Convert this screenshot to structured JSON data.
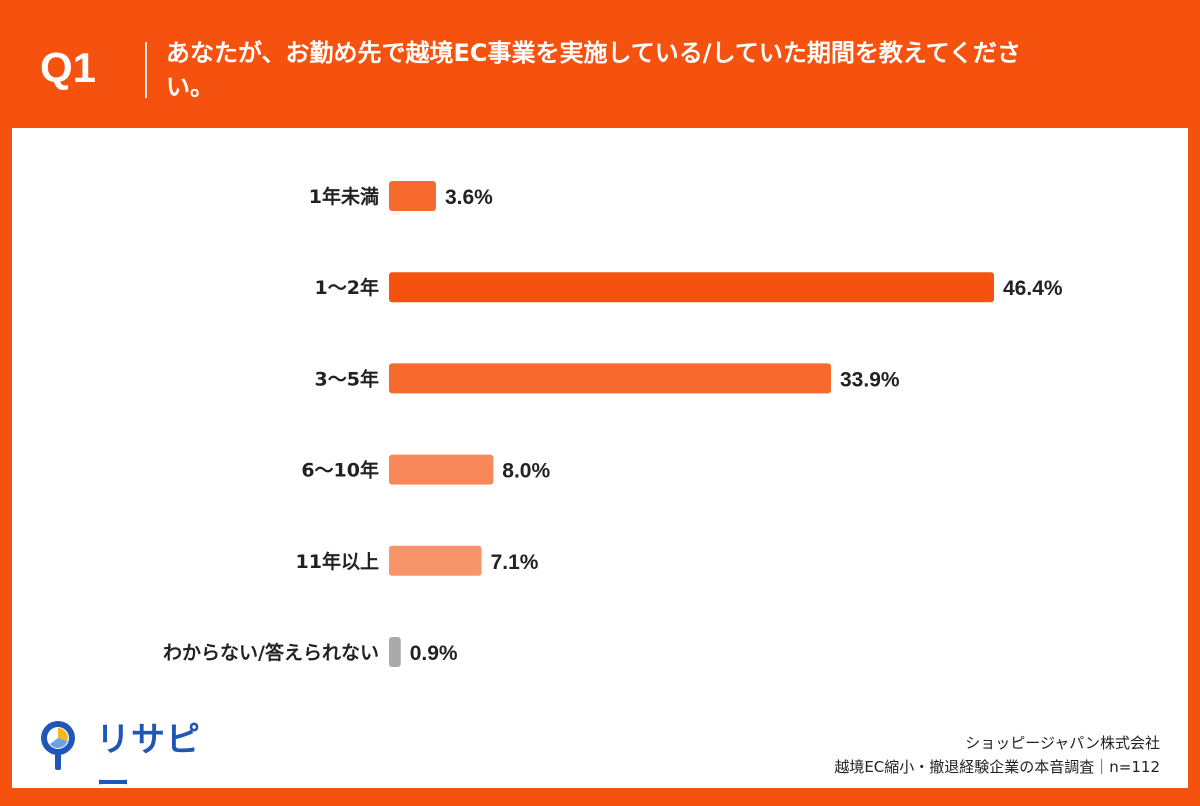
{
  "header": {
    "question_label": "Q1",
    "title": "あなたが、お勤め先で越境EC事業を実施している/していた期間を教えてください。"
  },
  "logo": {
    "text": "リサピー"
  },
  "footer": {
    "company": "ショッピージャパン株式会社",
    "survey": "越境EC縮小・撤退経験企業の本音調査｜n=112"
  },
  "colors": {
    "frame": "#f5520f",
    "panel": "#ffffff",
    "bar_dark": "#f4520e",
    "bar_mid": "#f66a2e",
    "bar_light": "#f8875a",
    "bar_lighter": "#f89469",
    "bar_gray": "#aaaaaa",
    "logo_blue": "#1f56b8",
    "logo_yellow": "#f5b81c"
  },
  "chart_data": {
    "type": "bar",
    "orientation": "horizontal",
    "categories": [
      "1年未満",
      "1〜2年",
      "3〜5年",
      "6〜10年",
      "11年以上",
      "わからない/答えられない"
    ],
    "values": [
      3.6,
      46.4,
      33.9,
      8.0,
      7.1,
      0.9
    ],
    "value_labels": [
      "3.6%",
      "46.4%",
      "33.9%",
      "8.0%",
      "7.1%",
      "0.9%"
    ],
    "bar_colors": [
      "#f66a2e",
      "#f4520e",
      "#f66a2e",
      "#f8875a",
      "#f89469",
      "#aaaaaa"
    ],
    "xlim": [
      0,
      46.4
    ],
    "grid": false,
    "legend": "none"
  }
}
